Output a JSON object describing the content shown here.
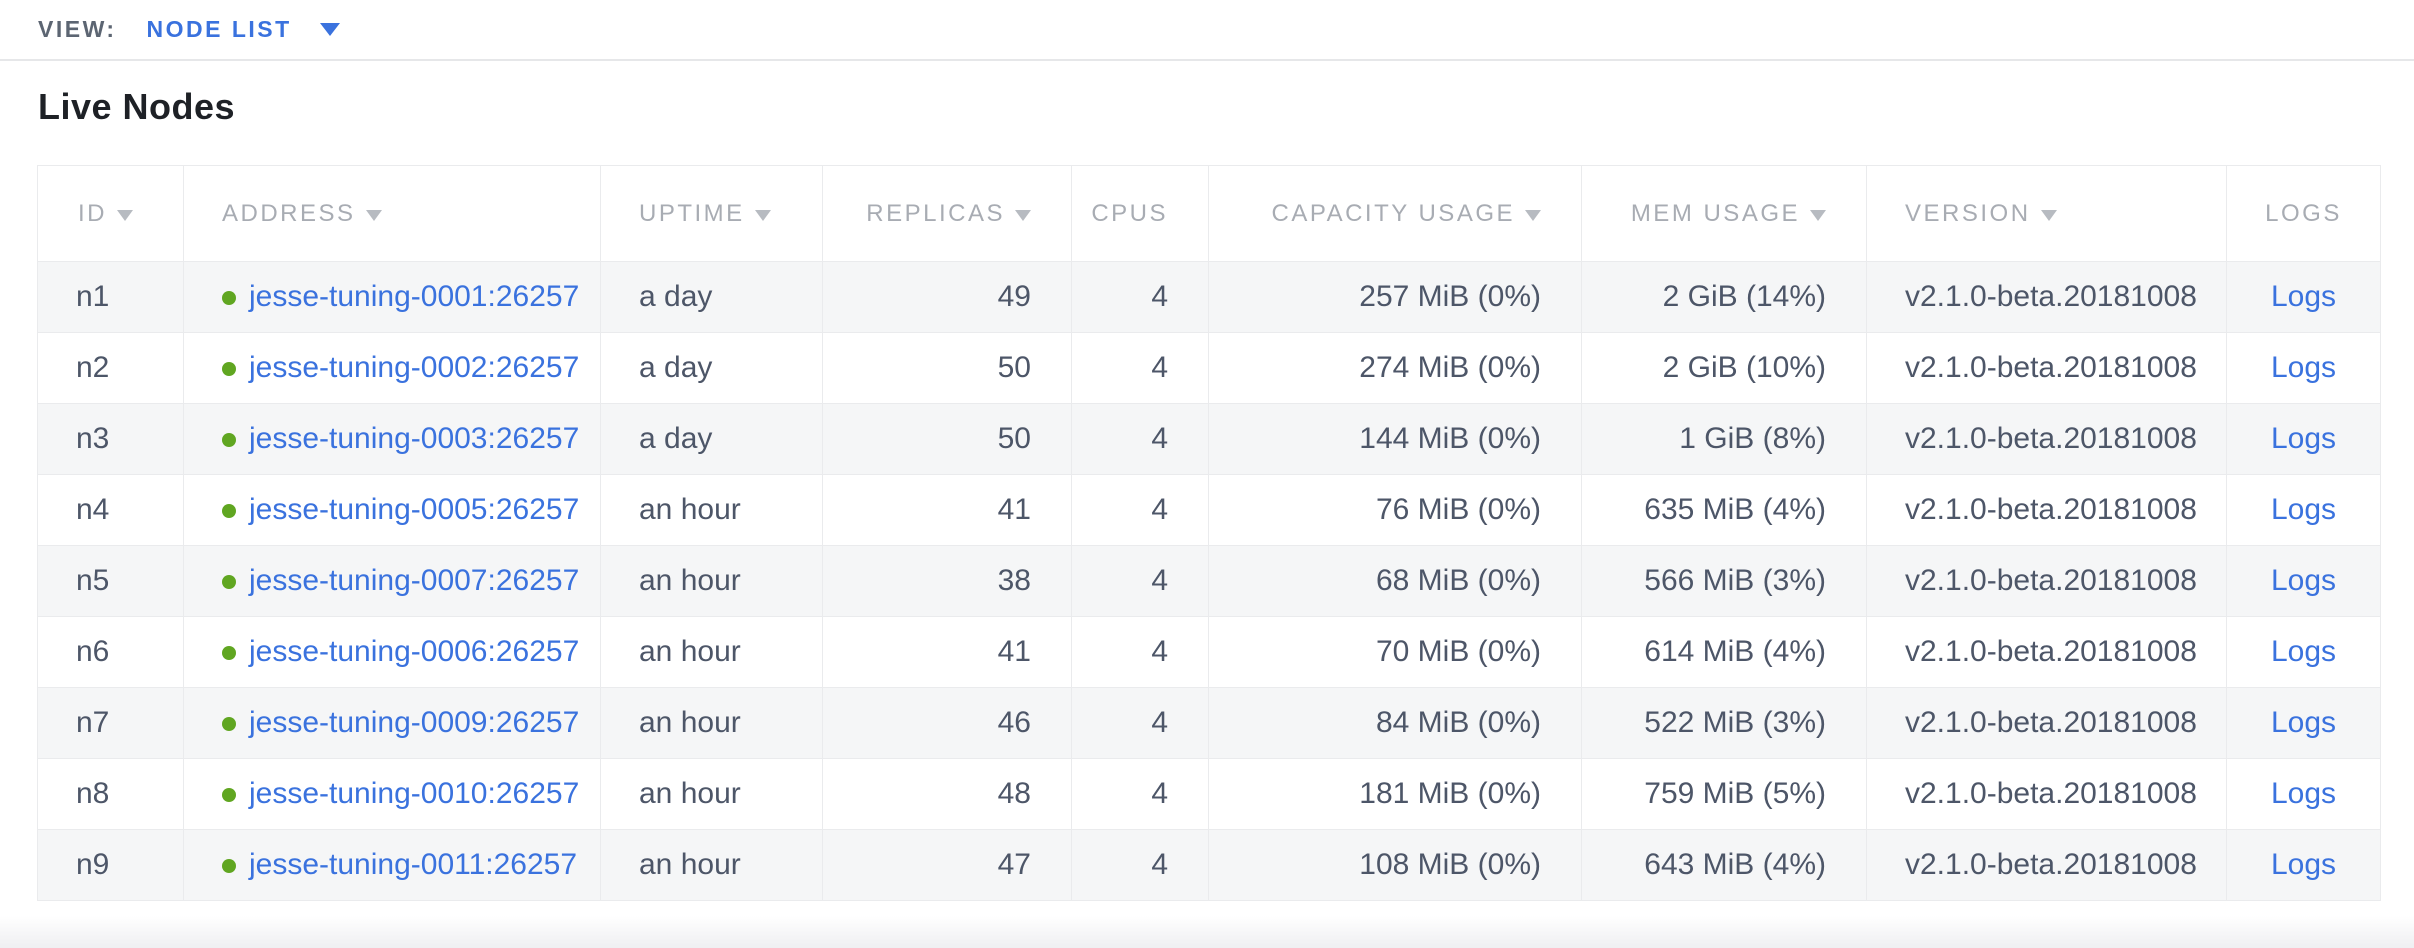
{
  "topbar": {
    "view_label": "VIEW:",
    "view_value": "NODE LIST"
  },
  "heading": "Live Nodes",
  "colors": {
    "link_blue": "#3a72de",
    "live_green": "#60a621",
    "header_gray": "#a8acb3",
    "row_text": "#4d5668",
    "stripe_gray": "#f5f6f7"
  },
  "table": {
    "columns": [
      {
        "field": "id",
        "label": "ID",
        "sortable": true,
        "align": "left"
      },
      {
        "field": "address",
        "label": "ADDRESS",
        "sortable": true,
        "align": "left"
      },
      {
        "field": "uptime",
        "label": "UPTIME",
        "sortable": true,
        "align": "left"
      },
      {
        "field": "replicas",
        "label": "REPLICAS",
        "sortable": true,
        "align": "right"
      },
      {
        "field": "cpus",
        "label": "CPUS",
        "sortable": false,
        "align": "right"
      },
      {
        "field": "capacity",
        "label": "CAPACITY USAGE",
        "sortable": true,
        "align": "right"
      },
      {
        "field": "mem",
        "label": "MEM USAGE",
        "sortable": true,
        "align": "right"
      },
      {
        "field": "version",
        "label": "VERSION",
        "sortable": true,
        "align": "left"
      },
      {
        "field": "logs",
        "label": "LOGS",
        "sortable": false,
        "align": "center"
      }
    ],
    "rows": [
      {
        "id": "n1",
        "status": "live",
        "address": "jesse-tuning-0001:26257",
        "uptime": "a day",
        "replicas": "49",
        "cpus": "4",
        "capacity": "257 MiB (0%)",
        "mem": "2 GiB (14%)",
        "version": "v2.1.0-beta.20181008",
        "logs": "Logs"
      },
      {
        "id": "n2",
        "status": "live",
        "address": "jesse-tuning-0002:26257",
        "uptime": "a day",
        "replicas": "50",
        "cpus": "4",
        "capacity": "274 MiB (0%)",
        "mem": "2 GiB (10%)",
        "version": "v2.1.0-beta.20181008",
        "logs": "Logs"
      },
      {
        "id": "n3",
        "status": "live",
        "address": "jesse-tuning-0003:26257",
        "uptime": "a day",
        "replicas": "50",
        "cpus": "4",
        "capacity": "144 MiB (0%)",
        "mem": "1 GiB (8%)",
        "version": "v2.1.0-beta.20181008",
        "logs": "Logs"
      },
      {
        "id": "n4",
        "status": "live",
        "address": "jesse-tuning-0005:26257",
        "uptime": "an hour",
        "replicas": "41",
        "cpus": "4",
        "capacity": "76 MiB (0%)",
        "mem": "635 MiB (4%)",
        "version": "v2.1.0-beta.20181008",
        "logs": "Logs"
      },
      {
        "id": "n5",
        "status": "live",
        "address": "jesse-tuning-0007:26257",
        "uptime": "an hour",
        "replicas": "38",
        "cpus": "4",
        "capacity": "68 MiB (0%)",
        "mem": "566 MiB (3%)",
        "version": "v2.1.0-beta.20181008",
        "logs": "Logs"
      },
      {
        "id": "n6",
        "status": "live",
        "address": "jesse-tuning-0006:26257",
        "uptime": "an hour",
        "replicas": "41",
        "cpus": "4",
        "capacity": "70 MiB (0%)",
        "mem": "614 MiB (4%)",
        "version": "v2.1.0-beta.20181008",
        "logs": "Logs"
      },
      {
        "id": "n7",
        "status": "live",
        "address": "jesse-tuning-0009:26257",
        "uptime": "an hour",
        "replicas": "46",
        "cpus": "4",
        "capacity": "84 MiB (0%)",
        "mem": "522 MiB (3%)",
        "version": "v2.1.0-beta.20181008",
        "logs": "Logs"
      },
      {
        "id": "n8",
        "status": "live",
        "address": "jesse-tuning-0010:26257",
        "uptime": "an hour",
        "replicas": "48",
        "cpus": "4",
        "capacity": "181 MiB (0%)",
        "mem": "759 MiB (5%)",
        "version": "v2.1.0-beta.20181008",
        "logs": "Logs"
      },
      {
        "id": "n9",
        "status": "live",
        "address": "jesse-tuning-0011:26257",
        "uptime": "an hour",
        "replicas": "47",
        "cpus": "4",
        "capacity": "108 MiB (0%)",
        "mem": "643 MiB (4%)",
        "version": "v2.1.0-beta.20181008",
        "logs": "Logs"
      }
    ]
  }
}
